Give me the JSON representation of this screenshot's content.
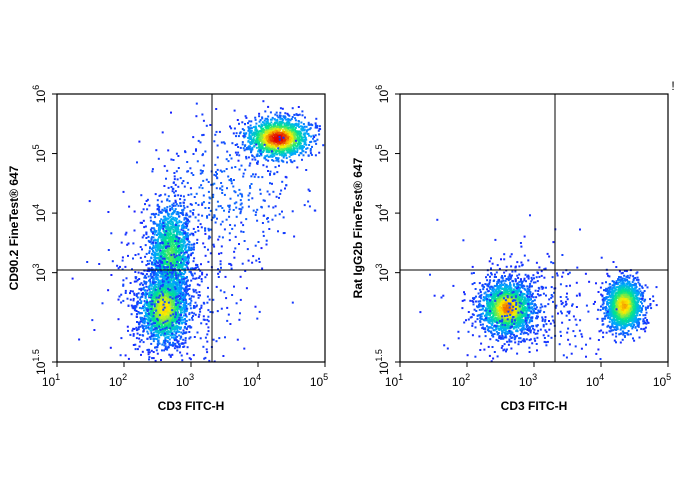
{
  "chart_data": [
    {
      "type": "scatter",
      "subtype": "flow-cytometry-density-dot-plot",
      "xlabel": "CD3 FITC-H",
      "ylabel": "CD90.2  FineTest® 647",
      "x_scale": "log",
      "y_scale": "log",
      "xlim": [
        10,
        100000
      ],
      "ylim": [
        31.6,
        1000000
      ],
      "x_ticks": [
        {
          "base": "10",
          "exp": "1",
          "value": 10
        },
        {
          "base": "10",
          "exp": "2",
          "value": 100
        },
        {
          "base": "10",
          "exp": "3",
          "value": 1000
        },
        {
          "base": "10",
          "exp": "4",
          "value": 10000
        },
        {
          "base": "10",
          "exp": "5",
          "value": 100000
        }
      ],
      "y_ticks": [
        {
          "base": "10",
          "exp": "1.5",
          "value": 31.6
        },
        {
          "base": "10",
          "exp": "3",
          "value": 1000
        },
        {
          "base": "10",
          "exp": "4",
          "value": 10000
        },
        {
          "base": "10",
          "exp": "5",
          "value": 100000
        },
        {
          "base": "10",
          "exp": "6",
          "value": 1000000
        }
      ],
      "quadrant_gate": {
        "x": 2000,
        "y": 1100
      },
      "populations": [
        {
          "label": "CD3- CD90.2 high",
          "center_x": 500,
          "center_y": 2000,
          "sd_logx": 0.16,
          "sd_logy": 0.45,
          "n": 1500,
          "peak_density": 0.55
        },
        {
          "label": "CD3- CD90.2 low",
          "center_x": 400,
          "center_y": 250,
          "sd_logx": 0.18,
          "sd_logy": 0.3,
          "n": 1600,
          "peak_density": 0.75
        },
        {
          "label": "CD3+ CD90.2+",
          "center_x": 20000,
          "center_y": 180000,
          "sd_logx": 0.24,
          "sd_logy": 0.17,
          "n": 1400,
          "peak_density": 1.0
        },
        {
          "label": "transition",
          "center_x": 3000,
          "center_y": 20000,
          "sd_logx": 0.6,
          "sd_logy": 0.6,
          "n": 400,
          "peak_density": 0.1
        },
        {
          "label": "scatter background",
          "center_x": 500,
          "center_y": 300,
          "sd_logx": 0.5,
          "sd_logy": 0.7,
          "n": 500,
          "peak_density": 0.05
        }
      ]
    },
    {
      "type": "scatter",
      "subtype": "flow-cytometry-density-dot-plot",
      "xlabel": "CD3 FITC-H",
      "ylabel": "Rat IgG2b  FineTest® 647",
      "x_scale": "log",
      "y_scale": "log",
      "xlim": [
        10,
        100000
      ],
      "ylim": [
        31.6,
        1000000
      ],
      "x_ticks": [
        {
          "base": "10",
          "exp": "1",
          "value": 10
        },
        {
          "base": "10",
          "exp": "2",
          "value": 100
        },
        {
          "base": "10",
          "exp": "3",
          "value": 1000
        },
        {
          "base": "10",
          "exp": "4",
          "value": 10000
        },
        {
          "base": "10",
          "exp": "5",
          "value": 100000
        }
      ],
      "y_ticks": [
        {
          "base": "10",
          "exp": "1.5",
          "value": 31.6
        },
        {
          "base": "10",
          "exp": "3",
          "value": 1000
        },
        {
          "base": "10",
          "exp": "4",
          "value": 10000
        },
        {
          "base": "10",
          "exp": "5",
          "value": 100000
        },
        {
          "base": "10",
          "exp": "6",
          "value": 1000000
        }
      ],
      "quadrant_gate": {
        "x": 2000,
        "y": 1100
      },
      "populations": [
        {
          "label": "CD3- isotype",
          "center_x": 400,
          "center_y": 250,
          "sd_logx": 0.2,
          "sd_logy": 0.22,
          "n": 1800,
          "peak_density": 0.85
        },
        {
          "label": "CD3+ isotype",
          "center_x": 22000,
          "center_y": 280,
          "sd_logx": 0.14,
          "sd_logy": 0.22,
          "n": 1500,
          "peak_density": 0.8
        },
        {
          "label": "scatter background",
          "center_x": 800,
          "center_y": 250,
          "sd_logx": 0.55,
          "sd_logy": 0.5,
          "n": 400,
          "peak_density": 0.05
        }
      ],
      "marker_text": "!"
    }
  ],
  "colors": {
    "density_low": "#1a1aff",
    "density_mid": "#00e68a",
    "density_high": "#ffee00",
    "density_peak": "#e00000",
    "axes": "#000000"
  }
}
